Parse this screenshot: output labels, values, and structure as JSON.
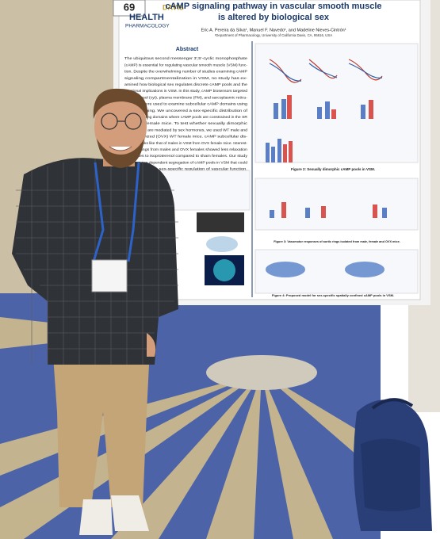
{
  "poster": {
    "number": "69",
    "logo": [
      "DAVIS",
      "HEALTH",
      "PHARMACOLOGY"
    ],
    "title": [
      "cAMP signaling pathway in vascular smooth muscle",
      "is altered by biological sex"
    ],
    "authors": "Eric A. Pereira da Silva¹, Manuel F. Navedo¹, and Madeline Nieves-Cintrón¹",
    "affiliation": "¹Department of Pharmacology, University of California Davis, CA, 95616, USA",
    "abstract_heading": "Abstract",
    "abstract_lines": [
      "The ubiquitous second messenger 3',5'-cyclic monophosphate",
      "(cAMP) is essential for regulating vascular smooth muscle (VSM) func-",
      "tion. Despite the overwhelming number of studies examining cAMP",
      "signaling compartmentalization in VSM, no study has ex-",
      "amined how biological sex regulates discrete cAMP pools and the",
      "functional implications in VSM. In this study, cAMP biosensors targeted",
      "to the cytosol (cyt), plasma membrane (PM), and sarcoplasmic reticu-",
      "lum (SR) were used to examine subcellular cAMP domains using",
      "FRET imaging. We uncovered a sex-specific distribution of",
      "cAMP signaling domains where cAMP pools are constrained in the SR",
      "but not in female mice. To test whether sexually dimorphic",
      "cAMP pools are mediated by sex hormones, we used WT male and",
      "ovariectomized (OVX) WT female mice. cAMP subcellular dis-",
      "tribution looks like that of males in VSM from OVX female mice. Interest-",
      "ingly, findings from males and OVX females showed less relaxation",
      "responses to isoproterenol compared to sham females. Our study",
      "reveals a sex-dependent segregation of cAMP pools in VSM that could",
      "contribute to the sex-specific regulation of vascular function."
    ],
    "figure_captions": [
      "Figure 2: Sexually dimorphic cAMP pools in VSM.",
      "Figure 3: Vasomotor responses of aortic rings isolated from male, female and OVX mice.",
      "Figure 4: Proposed model for sex-specific spatially confined cAMP pools in VSM."
    ]
  }
}
